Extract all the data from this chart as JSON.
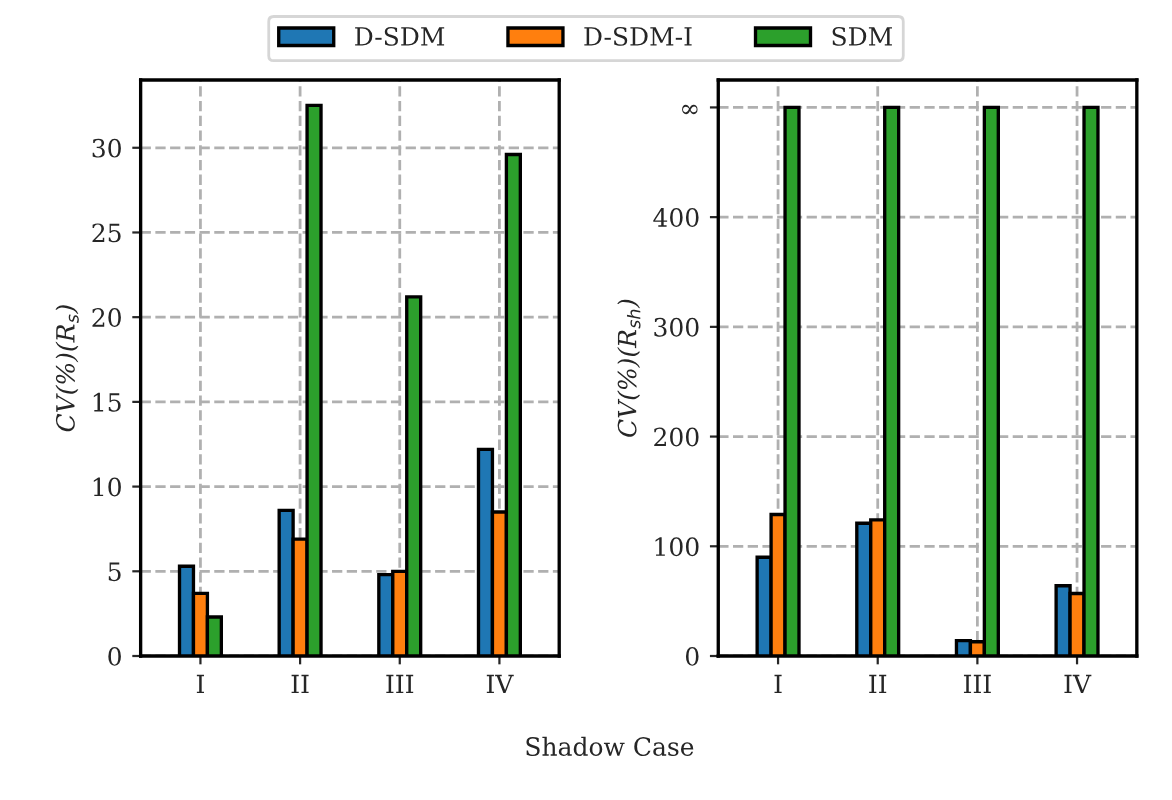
{
  "chart_data": [
    {
      "type": "bar",
      "categories": [
        "I",
        "II",
        "III",
        "IV"
      ],
      "xlabel": "Shadow Case",
      "ylabel": "CV(%)(R$_{s}$)",
      "ylim": [
        0,
        34
      ],
      "yticks": [
        0,
        5,
        10,
        15,
        20,
        25,
        30
      ],
      "grid": true,
      "legend": "top",
      "series": [
        {
          "name": "D-SDM",
          "color": "#1f77b4",
          "values": [
            5.3,
            8.6,
            4.8,
            12.2
          ]
        },
        {
          "name": "D-SDM-I",
          "color": "#ff7f0e",
          "values": [
            3.7,
            6.9,
            5.0,
            8.5
          ]
        },
        {
          "name": "SDM",
          "color": "#2ca02c",
          "values": [
            2.3,
            32.5,
            21.2,
            29.6
          ]
        }
      ]
    },
    {
      "type": "bar",
      "categories": [
        "I",
        "II",
        "III",
        "IV"
      ],
      "ylabel": "CV(%)(R$_{sh}$)",
      "ylim": [
        0,
        525
      ],
      "yticks": [
        0,
        100,
        200,
        300,
        400,
        {
          "value": 500,
          "label": "∞"
        }
      ],
      "grid": true,
      "series": [
        {
          "color": "#1f77b4",
          "values": [
            90,
            121,
            14,
            64
          ]
        },
        {
          "color": "#ff7f0e",
          "values": [
            129,
            124,
            13,
            57
          ]
        },
        {
          "color": "#2ca02c",
          "values": [
            500,
            500,
            500,
            500
          ]
        }
      ]
    }
  ]
}
